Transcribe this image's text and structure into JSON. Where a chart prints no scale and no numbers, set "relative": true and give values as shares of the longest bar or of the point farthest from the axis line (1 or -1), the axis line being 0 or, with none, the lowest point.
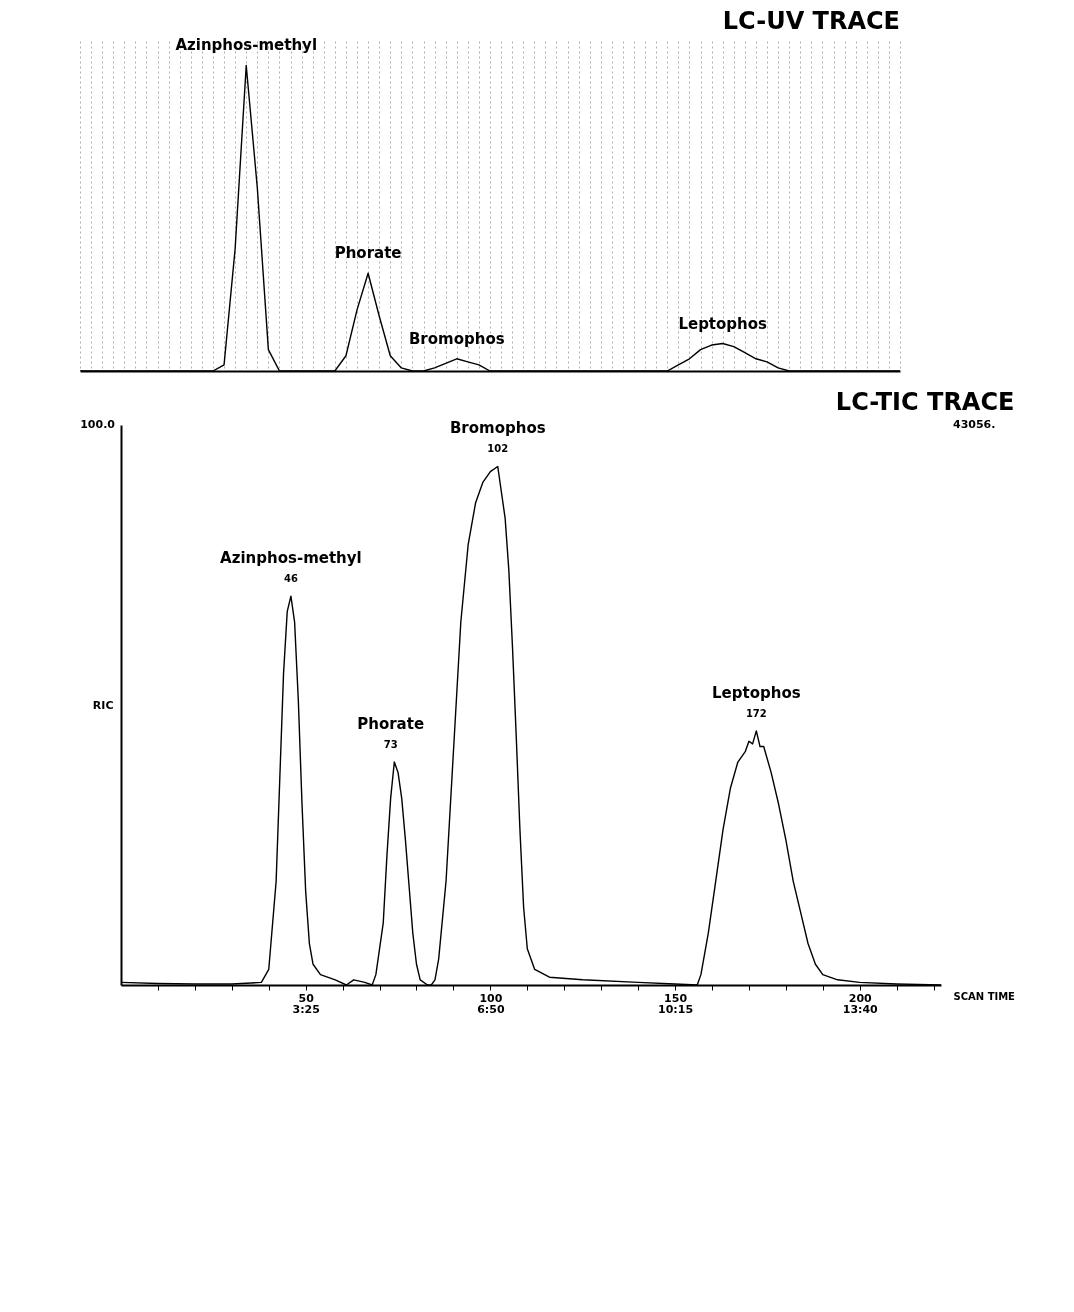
{
  "chart_data": [
    {
      "type": "line",
      "title": "LC-UV TRACE",
      "relative": true,
      "grid": "x",
      "categories": [
        null,
        null,
        null,
        null,
        null,
        null,
        null,
        null,
        null,
        null,
        null,
        null,
        null,
        null,
        null,
        null,
        null,
        null,
        null,
        null,
        null,
        null,
        null,
        null,
        null,
        null,
        null,
        null,
        null,
        null,
        null,
        null,
        null,
        null,
        null,
        null,
        null,
        null,
        null,
        null,
        null,
        null,
        null,
        null,
        null,
        null,
        null,
        null,
        null,
        null,
        null,
        null,
        null,
        null,
        null,
        null,
        null,
        null,
        null,
        null,
        null,
        null,
        null,
        null,
        null,
        null,
        null,
        null,
        null,
        null,
        null,
        null,
        null,
        null,
        null
      ],
      "series": [
        {
          "color": "#000000",
          "values": [
            0,
            0,
            0,
            0,
            0,
            0,
            0,
            0,
            0,
            0,
            0,
            0,
            0,
            0.02,
            0.4,
            1,
            0.6,
            0.07,
            0,
            0,
            0,
            0,
            0,
            0,
            0.05,
            0.2,
            0.32,
            0.18,
            0.05,
            0.01,
            0,
            0,
            0.01,
            0.025,
            0.04,
            0.03,
            0.02,
            0,
            0,
            0,
            0,
            0,
            0,
            0,
            0,
            0,
            0,
            0,
            0,
            0,
            0,
            0,
            0,
            0,
            0.02,
            0.04,
            0.07,
            0.085,
            0.09,
            0.08,
            0.06,
            0.04,
            0.03,
            0.01,
            0,
            0,
            0,
            0,
            0,
            0,
            0,
            0,
            0,
            0,
            0
          ]
        }
      ],
      "annotations": [
        {
          "text": "Azinphos-methyl",
          "y": 1
        },
        {
          "text": "Phorate",
          "y": 0.32
        },
        {
          "text": "Bromophos",
          "y": 0.04
        },
        {
          "text": "Leptophos",
          "y": 0.09
        }
      ]
    },
    {
      "type": "line",
      "title": "LC-TIC TRACE",
      "relative": true,
      "xlabel": "SCAN TIME",
      "ylabel": "RIC",
      "xlim": [
        0,
        222
      ],
      "xticks": [
        {
          "value": 10,
          "label": null
        },
        {
          "value": 20,
          "label": null
        },
        {
          "value": 30,
          "label": null
        },
        {
          "value": 40,
          "label": null
        },
        50,
        {
          "value": 60,
          "label": null
        },
        {
          "value": 70,
          "label": null
        },
        {
          "value": 80,
          "label": null
        },
        {
          "value": 90,
          "label": null
        },
        100,
        {
          "value": 110,
          "label": null
        },
        {
          "value": 120,
          "label": null
        },
        {
          "value": 130,
          "label": null
        },
        {
          "value": 140,
          "label": null
        },
        150,
        {
          "value": 160,
          "label": null
        },
        {
          "value": 170,
          "label": null
        },
        {
          "value": 180,
          "label": null
        },
        {
          "value": 190,
          "label": null
        },
        200,
        {
          "value": 210,
          "label": null
        },
        {
          "value": 220,
          "label": null
        }
      ],
      "x2lim": [
        0,
        910.2
      ],
      "x2ticks": [
        {
          "value": 205,
          "label": "3:25"
        },
        {
          "value": 410,
          "label": "6:50"
        },
        {
          "value": 615,
          "label": "10:15"
        },
        {
          "value": 820,
          "label": "13:40"
        }
      ],
      "series": [
        {
          "color": "#000000",
          "x": [
            0,
            10,
            20,
            30,
            38,
            40,
            42,
            43,
            44,
            45,
            46,
            47,
            48,
            49,
            50,
            51,
            52,
            54,
            58,
            61,
            63,
            66,
            68,
            69,
            71,
            72,
            73,
            74,
            75,
            76,
            77,
            78,
            79,
            80,
            81,
            83,
            84,
            85,
            86,
            88,
            90,
            92,
            94,
            96,
            98,
            100,
            102,
            104,
            105,
            106,
            107,
            108,
            109,
            110,
            112,
            116,
            125,
            140,
            150,
            156,
            157,
            159,
            161,
            163,
            165,
            167,
            169,
            170,
            171,
            172,
            173,
            174,
            176,
            178,
            180,
            182,
            184,
            186,
            188,
            190,
            194,
            200,
            210,
            222
          ],
          "values": [
            0.005,
            0.003,
            0.002,
            0.002,
            0.005,
            0.03,
            0.2,
            0.4,
            0.6,
            0.72,
            0.75,
            0.7,
            0.55,
            0.35,
            0.18,
            0.08,
            0.04,
            0.02,
            0.01,
            0,
            0.01,
            0.005,
            0,
            0.02,
            0.12,
            0.25,
            0.36,
            0.43,
            0.41,
            0.36,
            0.28,
            0.19,
            0.1,
            0.04,
            0.01,
            0,
            0,
            0.01,
            0.05,
            0.2,
            0.45,
            0.7,
            0.85,
            0.93,
            0.97,
            0.99,
            1,
            0.9,
            0.8,
            0.65,
            0.48,
            0.3,
            0.15,
            0.07,
            0.03,
            0.015,
            0.01,
            0.005,
            0.002,
            0,
            0.02,
            0.1,
            0.2,
            0.3,
            0.38,
            0.43,
            0.45,
            0.47,
            0.465,
            0.49,
            0.46,
            0.46,
            0.41,
            0.35,
            0.28,
            0.2,
            0.14,
            0.08,
            0.04,
            0.02,
            0.01,
            0.005,
            0.002,
            0
          ]
        }
      ],
      "annotations": [
        {
          "text": "46",
          "x": 46,
          "y": 0.75
        },
        {
          "text": "Azinphos-methyl",
          "x": 46,
          "y": 0.75
        },
        {
          "text": "73",
          "x": 73,
          "y": 0.43
        },
        {
          "text": "Phorate",
          "x": 73,
          "y": 0.43
        },
        {
          "text": "102",
          "x": 102,
          "y": 1
        },
        {
          "text": "Bromophos",
          "x": 102,
          "y": 1
        },
        {
          "text": "172",
          "x": 172,
          "y": 0.49
        },
        {
          "text": "Leptophos",
          "x": 172,
          "y": 0.49
        },
        "100.0",
        "43056."
      ]
    }
  ]
}
